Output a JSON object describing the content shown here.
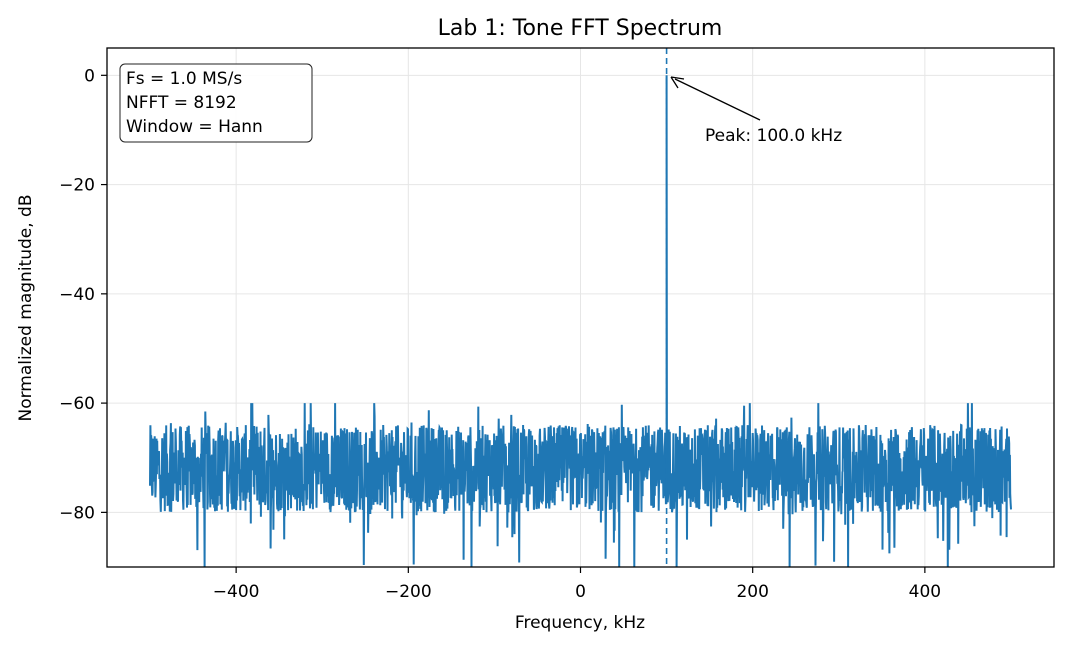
{
  "chart_data": {
    "type": "line",
    "title": "Lab 1: Tone FFT Spectrum",
    "xlabel": "Frequency, kHz",
    "ylabel": "Normalized magnitude, dB",
    "xlim": [
      -550,
      550
    ],
    "ylim": [
      -90,
      5
    ],
    "xticks": [
      -400,
      -200,
      0,
      200,
      400
    ],
    "xtick_labels": [
      "−400",
      "−200",
      "0",
      "200",
      "400"
    ],
    "yticks": [
      0,
      -20,
      -40,
      -60,
      -80
    ],
    "ytick_labels": [
      "0",
      "−20",
      "−40",
      "−60",
      "−80"
    ],
    "grid": true,
    "series": [
      {
        "color": "#1f77b4",
        "x_range": [
          -500,
          500
        ],
        "noise_floor_db": [
          -90,
          -60
        ],
        "peak": {
          "x": 100.0,
          "y": 0
        }
      }
    ],
    "peak_marker": {
      "x": 100.0,
      "style": "dashed",
      "color": "#1f77b4"
    },
    "info_box": {
      "lines": [
        "Fs = 1.0 MS/s",
        "NFFT = 8192",
        "Window = Hann"
      ],
      "placement": "top-left"
    },
    "annotation": {
      "text": "Peak: 100.0 kHz",
      "target_x": 100.0,
      "target_y": 0
    }
  }
}
